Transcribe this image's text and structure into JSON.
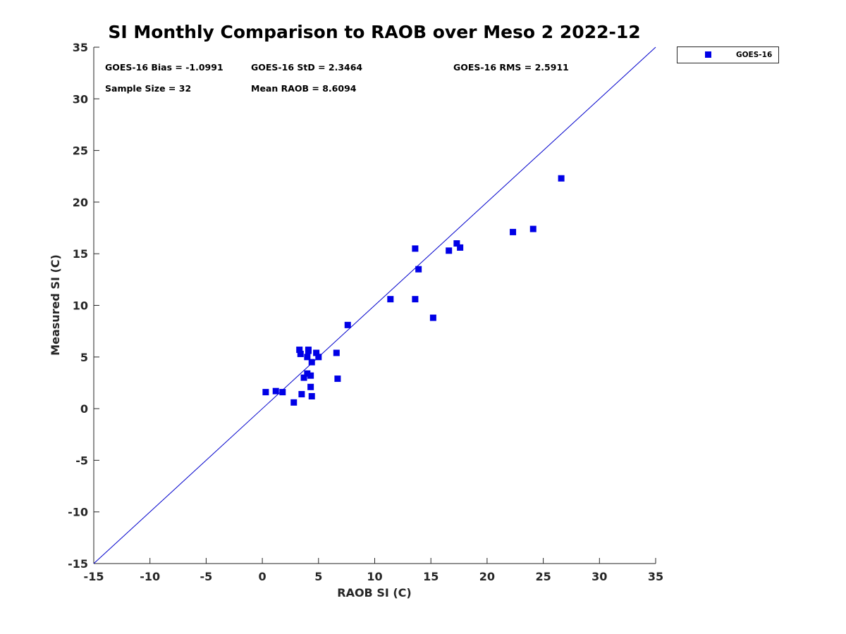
{
  "chart_data": {
    "type": "scatter",
    "title": "SI Monthly Comparison to RAOB over Meso 2 2022-12",
    "xlabel": "RAOB SI (C)",
    "ylabel": "Measured SI (C)",
    "xlim": [
      -15,
      35
    ],
    "ylim": [
      -15,
      35
    ],
    "xticks": [
      "-15",
      "-10",
      "-5",
      "0",
      "5",
      "10",
      "15",
      "20",
      "25",
      "30",
      "35"
    ],
    "yticks": [
      "-15",
      "-10",
      "-5",
      "0",
      "5",
      "10",
      "15",
      "20",
      "25",
      "30",
      "35"
    ],
    "grid": false,
    "legend_position": "outside-top-right",
    "reference_line": {
      "name": "one-to-one",
      "from": [
        -15,
        -15
      ],
      "to": [
        35,
        35
      ],
      "color": "#0000cc"
    },
    "series": [
      {
        "name": "GOES-16",
        "color": "#0000e6",
        "marker": "square",
        "x": [
          0.3,
          1.2,
          1.8,
          2.8,
          3.3,
          3.4,
          3.5,
          3.7,
          4.0,
          4.0,
          4.1,
          4.3,
          4.3,
          4.4,
          4.4,
          4.8,
          5.0,
          6.6,
          6.7,
          7.6,
          11.4,
          13.6,
          13.6,
          13.9,
          15.2,
          16.6,
          17.3,
          17.6,
          22.3,
          24.1,
          26.6,
          4.1
        ],
        "y": [
          1.6,
          1.7,
          1.6,
          0.6,
          5.7,
          5.3,
          1.4,
          3.0,
          5.0,
          3.4,
          5.7,
          3.2,
          2.1,
          4.5,
          1.2,
          5.4,
          5.0,
          5.4,
          2.9,
          8.1,
          10.6,
          15.5,
          10.6,
          13.5,
          8.8,
          15.3,
          16.0,
          15.6,
          17.1,
          17.4,
          22.3,
          5.6
        ]
      }
    ],
    "annotations": [
      "GOES-16 Bias = -1.0991",
      "GOES-16 StD = 2.3464",
      "GOES-16 RMS = 2.5911",
      "Sample Size = 32",
      "Mean RAOB = 8.6094"
    ],
    "legend": [
      "GOES-16"
    ]
  }
}
